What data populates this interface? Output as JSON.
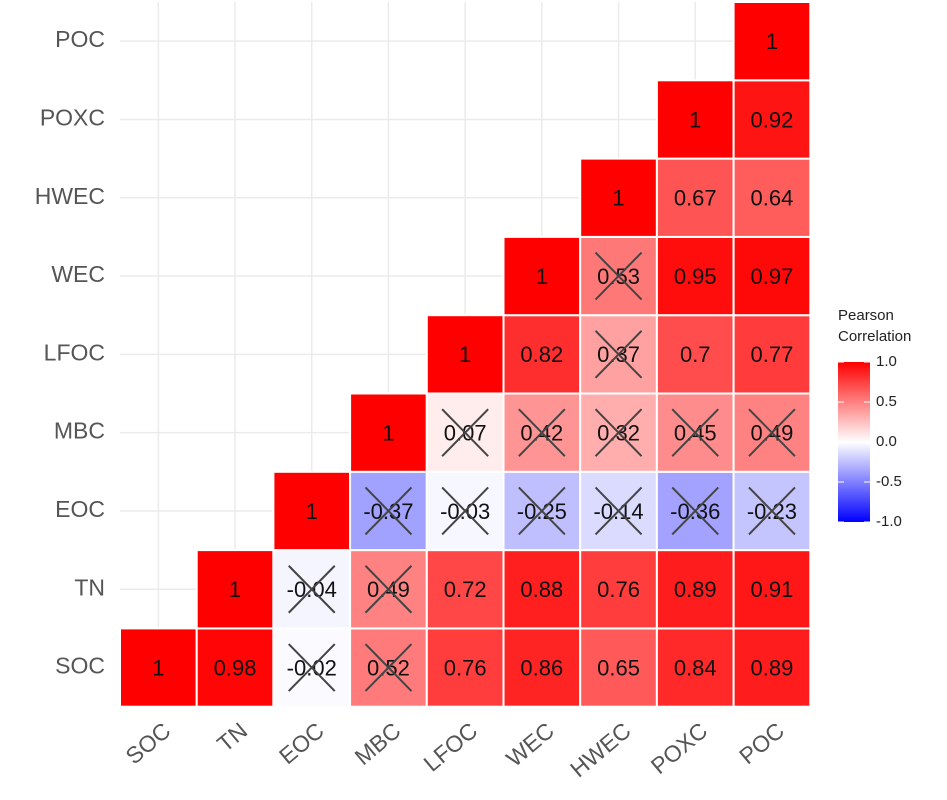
{
  "chart_data": {
    "type": "heatmap",
    "categories": [
      "SOC",
      "TN",
      "EOC",
      "MBC",
      "LFOC",
      "WEC",
      "HWEC",
      "POXC",
      "POC"
    ],
    "values": [
      [
        1,
        0.98,
        -0.02,
        0.52,
        0.76,
        0.86,
        0.65,
        0.84,
        0.89
      ],
      [
        null,
        1,
        -0.04,
        0.49,
        0.72,
        0.88,
        0.76,
        0.89,
        0.91
      ],
      [
        null,
        null,
        1,
        -0.37,
        -0.03,
        -0.25,
        -0.14,
        -0.36,
        -0.23
      ],
      [
        null,
        null,
        null,
        1,
        0.07,
        0.42,
        0.32,
        0.45,
        0.49
      ],
      [
        null,
        null,
        null,
        null,
        1,
        0.82,
        0.37,
        0.7,
        0.77
      ],
      [
        null,
        null,
        null,
        null,
        null,
        1,
        0.53,
        0.95,
        0.97
      ],
      [
        null,
        null,
        null,
        null,
        null,
        null,
        1,
        0.67,
        0.64
      ],
      [
        null,
        null,
        null,
        null,
        null,
        null,
        null,
        1,
        0.92
      ],
      [
        null,
        null,
        null,
        null,
        null,
        null,
        null,
        null,
        1
      ]
    ],
    "crossed": [
      [
        false,
        false,
        true,
        true,
        false,
        false,
        false,
        false,
        false
      ],
      [
        null,
        false,
        true,
        true,
        false,
        false,
        false,
        false,
        false
      ],
      [
        null,
        null,
        false,
        true,
        true,
        true,
        true,
        true,
        true
      ],
      [
        null,
        null,
        null,
        false,
        true,
        true,
        true,
        true,
        true
      ],
      [
        null,
        null,
        null,
        null,
        false,
        false,
        true,
        false,
        false
      ],
      [
        null,
        null,
        null,
        null,
        null,
        false,
        true,
        false,
        false
      ],
      [
        null,
        null,
        null,
        null,
        null,
        null,
        false,
        false,
        false
      ],
      [
        null,
        null,
        null,
        null,
        null,
        null,
        null,
        false,
        false
      ],
      [
        null,
        null,
        null,
        null,
        null,
        null,
        null,
        null,
        false
      ]
    ],
    "legend_title": [
      "Pearson",
      "Correlation"
    ],
    "colorscale": {
      "low": "#0000ff",
      "mid": "#ffffff",
      "high": "#ff0000"
    },
    "clim": [
      -1,
      1
    ],
    "cticks": [
      {
        "value": 1,
        "label": "1.0"
      },
      {
        "value": 0.5,
        "label": "0.5"
      },
      {
        "value": 0,
        "label": "0.0"
      },
      {
        "value": -0.5,
        "label": "-0.5"
      },
      {
        "value": -1,
        "label": "-1.0"
      }
    ],
    "grid": true
  }
}
